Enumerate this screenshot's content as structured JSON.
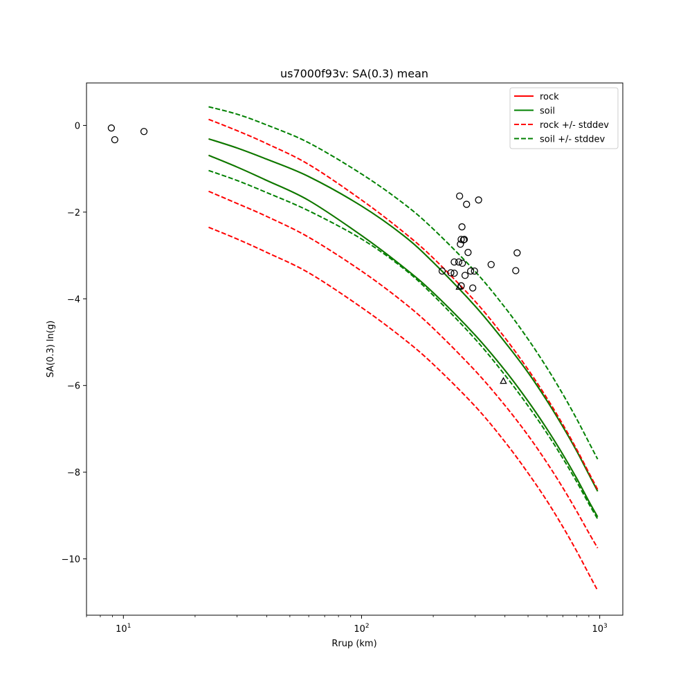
{
  "chart_data": {
    "type": "scatter",
    "title": "us7000f93v: SA(0.3) mean",
    "xlabel": "Rrup (km)",
    "ylabel": "SA(0.3) ln(g)",
    "xscale": "log",
    "xlim": [
      7.0,
      1250
    ],
    "ylim": [
      -11.3,
      0.98
    ],
    "x_ticks": [
      {
        "value": 10,
        "base": "10",
        "exp": "1"
      },
      {
        "value": 100,
        "base": "10",
        "exp": "2"
      },
      {
        "value": 1000,
        "base": "10",
        "exp": "3"
      }
    ],
    "y_ticks": [
      {
        "value": 0,
        "label": "0"
      },
      {
        "value": -2,
        "label": "−2"
      },
      {
        "value": -4,
        "label": "−4"
      },
      {
        "value": -6,
        "label": "−6"
      },
      {
        "value": -8,
        "label": "−8"
      },
      {
        "value": -10,
        "label": "−10"
      }
    ],
    "legend": {
      "position": "upper right",
      "entries": [
        {
          "label": "rock",
          "color": "#ff0000",
          "style": "solid"
        },
        {
          "label": "soil",
          "color": "#008000",
          "style": "solid"
        },
        {
          "label": "rock +/- stddev",
          "color": "#ff0000",
          "style": "dashed"
        },
        {
          "label": "soil +/- stddev",
          "color": "#008000",
          "style": "dashed"
        }
      ]
    },
    "series": [
      {
        "name": "rock",
        "color": "#ff0000",
        "style": "solid",
        "x": [
          22.8,
          30,
          40,
          60,
          100,
          150,
          200,
          300,
          400,
          500,
          600,
          700,
          800,
          900,
          980
        ],
        "y": [
          -0.69,
          -0.96,
          -1.27,
          -1.73,
          -2.54,
          -3.27,
          -3.86,
          -4.84,
          -5.65,
          -6.36,
          -7.0,
          -7.59,
          -8.14,
          -8.67,
          -9.03
        ]
      },
      {
        "name": "rock",
        "color": "#ff0000",
        "style": "solid",
        "x": [
          22.8,
          30,
          40,
          60,
          100,
          150,
          200,
          300,
          400,
          500,
          600,
          700,
          800,
          900,
          980
        ],
        "y": [
          -0.31,
          -0.52,
          -0.78,
          -1.18,
          -1.86,
          -2.54,
          -3.16,
          -4.17,
          -5.0,
          -5.7,
          -6.35,
          -6.95,
          -7.51,
          -8.05,
          -8.44
        ]
      },
      {
        "name": "soil",
        "color": "#008000",
        "style": "solid",
        "x": [
          22.8,
          30,
          40,
          60,
          100,
          150,
          200,
          300,
          400,
          500,
          600,
          700,
          800,
          900,
          980
        ],
        "y": [
          -0.31,
          -0.52,
          -0.78,
          -1.18,
          -1.86,
          -2.54,
          -3.16,
          -4.17,
          -5.0,
          -5.7,
          -6.35,
          -6.95,
          -7.51,
          -8.05,
          -8.44
        ]
      },
      {
        "name": "soil",
        "color": "#008000",
        "style": "solid",
        "x": [
          22.8,
          30,
          40,
          60,
          100,
          150,
          200,
          300,
          400,
          500,
          600,
          700,
          800,
          900,
          980
        ],
        "y": [
          -0.69,
          -0.96,
          -1.27,
          -1.73,
          -2.54,
          -3.27,
          -3.86,
          -4.84,
          -5.65,
          -6.36,
          -7.0,
          -7.59,
          -8.14,
          -8.67,
          -9.03
        ]
      },
      {
        "name": "rock +/- stddev",
        "color": "#ff0000",
        "style": "dashed",
        "x": [
          22.8,
          30,
          40,
          60,
          100,
          150,
          200,
          300,
          400,
          500,
          600,
          700,
          800,
          900,
          980
        ],
        "y": [
          0.14,
          -0.12,
          -0.42,
          -0.9,
          -1.72,
          -2.46,
          -3.06,
          -4.06,
          -4.9,
          -5.63,
          -6.29,
          -6.9,
          -7.47,
          -8.01,
          -8.4
        ]
      },
      {
        "name": "rock +/- stddev",
        "color": "#ff0000",
        "style": "dashed",
        "x": [
          22.8,
          30,
          40,
          60,
          100,
          150,
          200,
          300,
          400,
          500,
          600,
          700,
          800,
          900,
          980
        ],
        "y": [
          -1.52,
          -1.8,
          -2.1,
          -2.58,
          -3.36,
          -4.08,
          -4.68,
          -5.66,
          -6.46,
          -7.15,
          -7.78,
          -8.36,
          -8.9,
          -9.4,
          -9.75
        ]
      },
      {
        "name": "soil +/- stddev",
        "color": "#008000",
        "style": "dashed",
        "x": [
          22.8,
          30,
          40,
          60,
          100,
          150,
          200,
          300,
          400,
          500,
          600,
          700,
          800,
          900,
          980
        ],
        "y": [
          0.43,
          0.26,
          0.01,
          -0.4,
          -1.12,
          -1.8,
          -2.39,
          -3.37,
          -4.2,
          -4.93,
          -5.59,
          -6.2,
          -6.77,
          -7.31,
          -7.7
        ]
      },
      {
        "name": "soil +/- stddev",
        "color": "#008000",
        "style": "dashed",
        "x": [
          22.8,
          30,
          40,
          60,
          100,
          150,
          200,
          300,
          400,
          500,
          600,
          700,
          800,
          900,
          980
        ],
        "y": [
          -1.04,
          -1.27,
          -1.55,
          -1.97,
          -2.62,
          -3.3,
          -3.92,
          -4.93,
          -5.76,
          -6.47,
          -7.1,
          -7.68,
          -8.22,
          -8.73,
          -9.08
        ]
      },
      {
        "name": "rock +/- stddev",
        "color": "#ff0000",
        "style": "dashed",
        "x": [
          22.8,
          30,
          40,
          60,
          100,
          150,
          200,
          300,
          400,
          500,
          600,
          700,
          800,
          900,
          980
        ],
        "y": [
          -2.35,
          -2.62,
          -2.93,
          -3.4,
          -4.2,
          -4.92,
          -5.51,
          -6.48,
          -7.3,
          -8.02,
          -8.66,
          -9.26,
          -9.82,
          -10.35,
          -10.73
        ]
      }
    ],
    "stations_circle": {
      "x": [
        8.9,
        9.2,
        12.2,
        258,
        276,
        310,
        264,
        262,
        270,
        268,
        260,
        280,
        450,
        245,
        256,
        265,
        350,
        444,
        218,
        237,
        245,
        287,
        298,
        272,
        262,
        293
      ],
      "y": [
        -0.06,
        -0.33,
        -0.14,
        -1.63,
        -1.82,
        -1.72,
        -2.34,
        -2.63,
        -2.63,
        -2.64,
        -2.74,
        -2.93,
        -2.94,
        -3.15,
        -3.15,
        -3.18,
        -3.21,
        -3.35,
        -3.36,
        -3.4,
        -3.41,
        -3.36,
        -3.36,
        -3.46,
        -3.7,
        -3.75
      ]
    },
    "stations_triangle": {
      "x": [
        257,
        394
      ],
      "y": [
        -3.73,
        -5.9
      ]
    }
  }
}
